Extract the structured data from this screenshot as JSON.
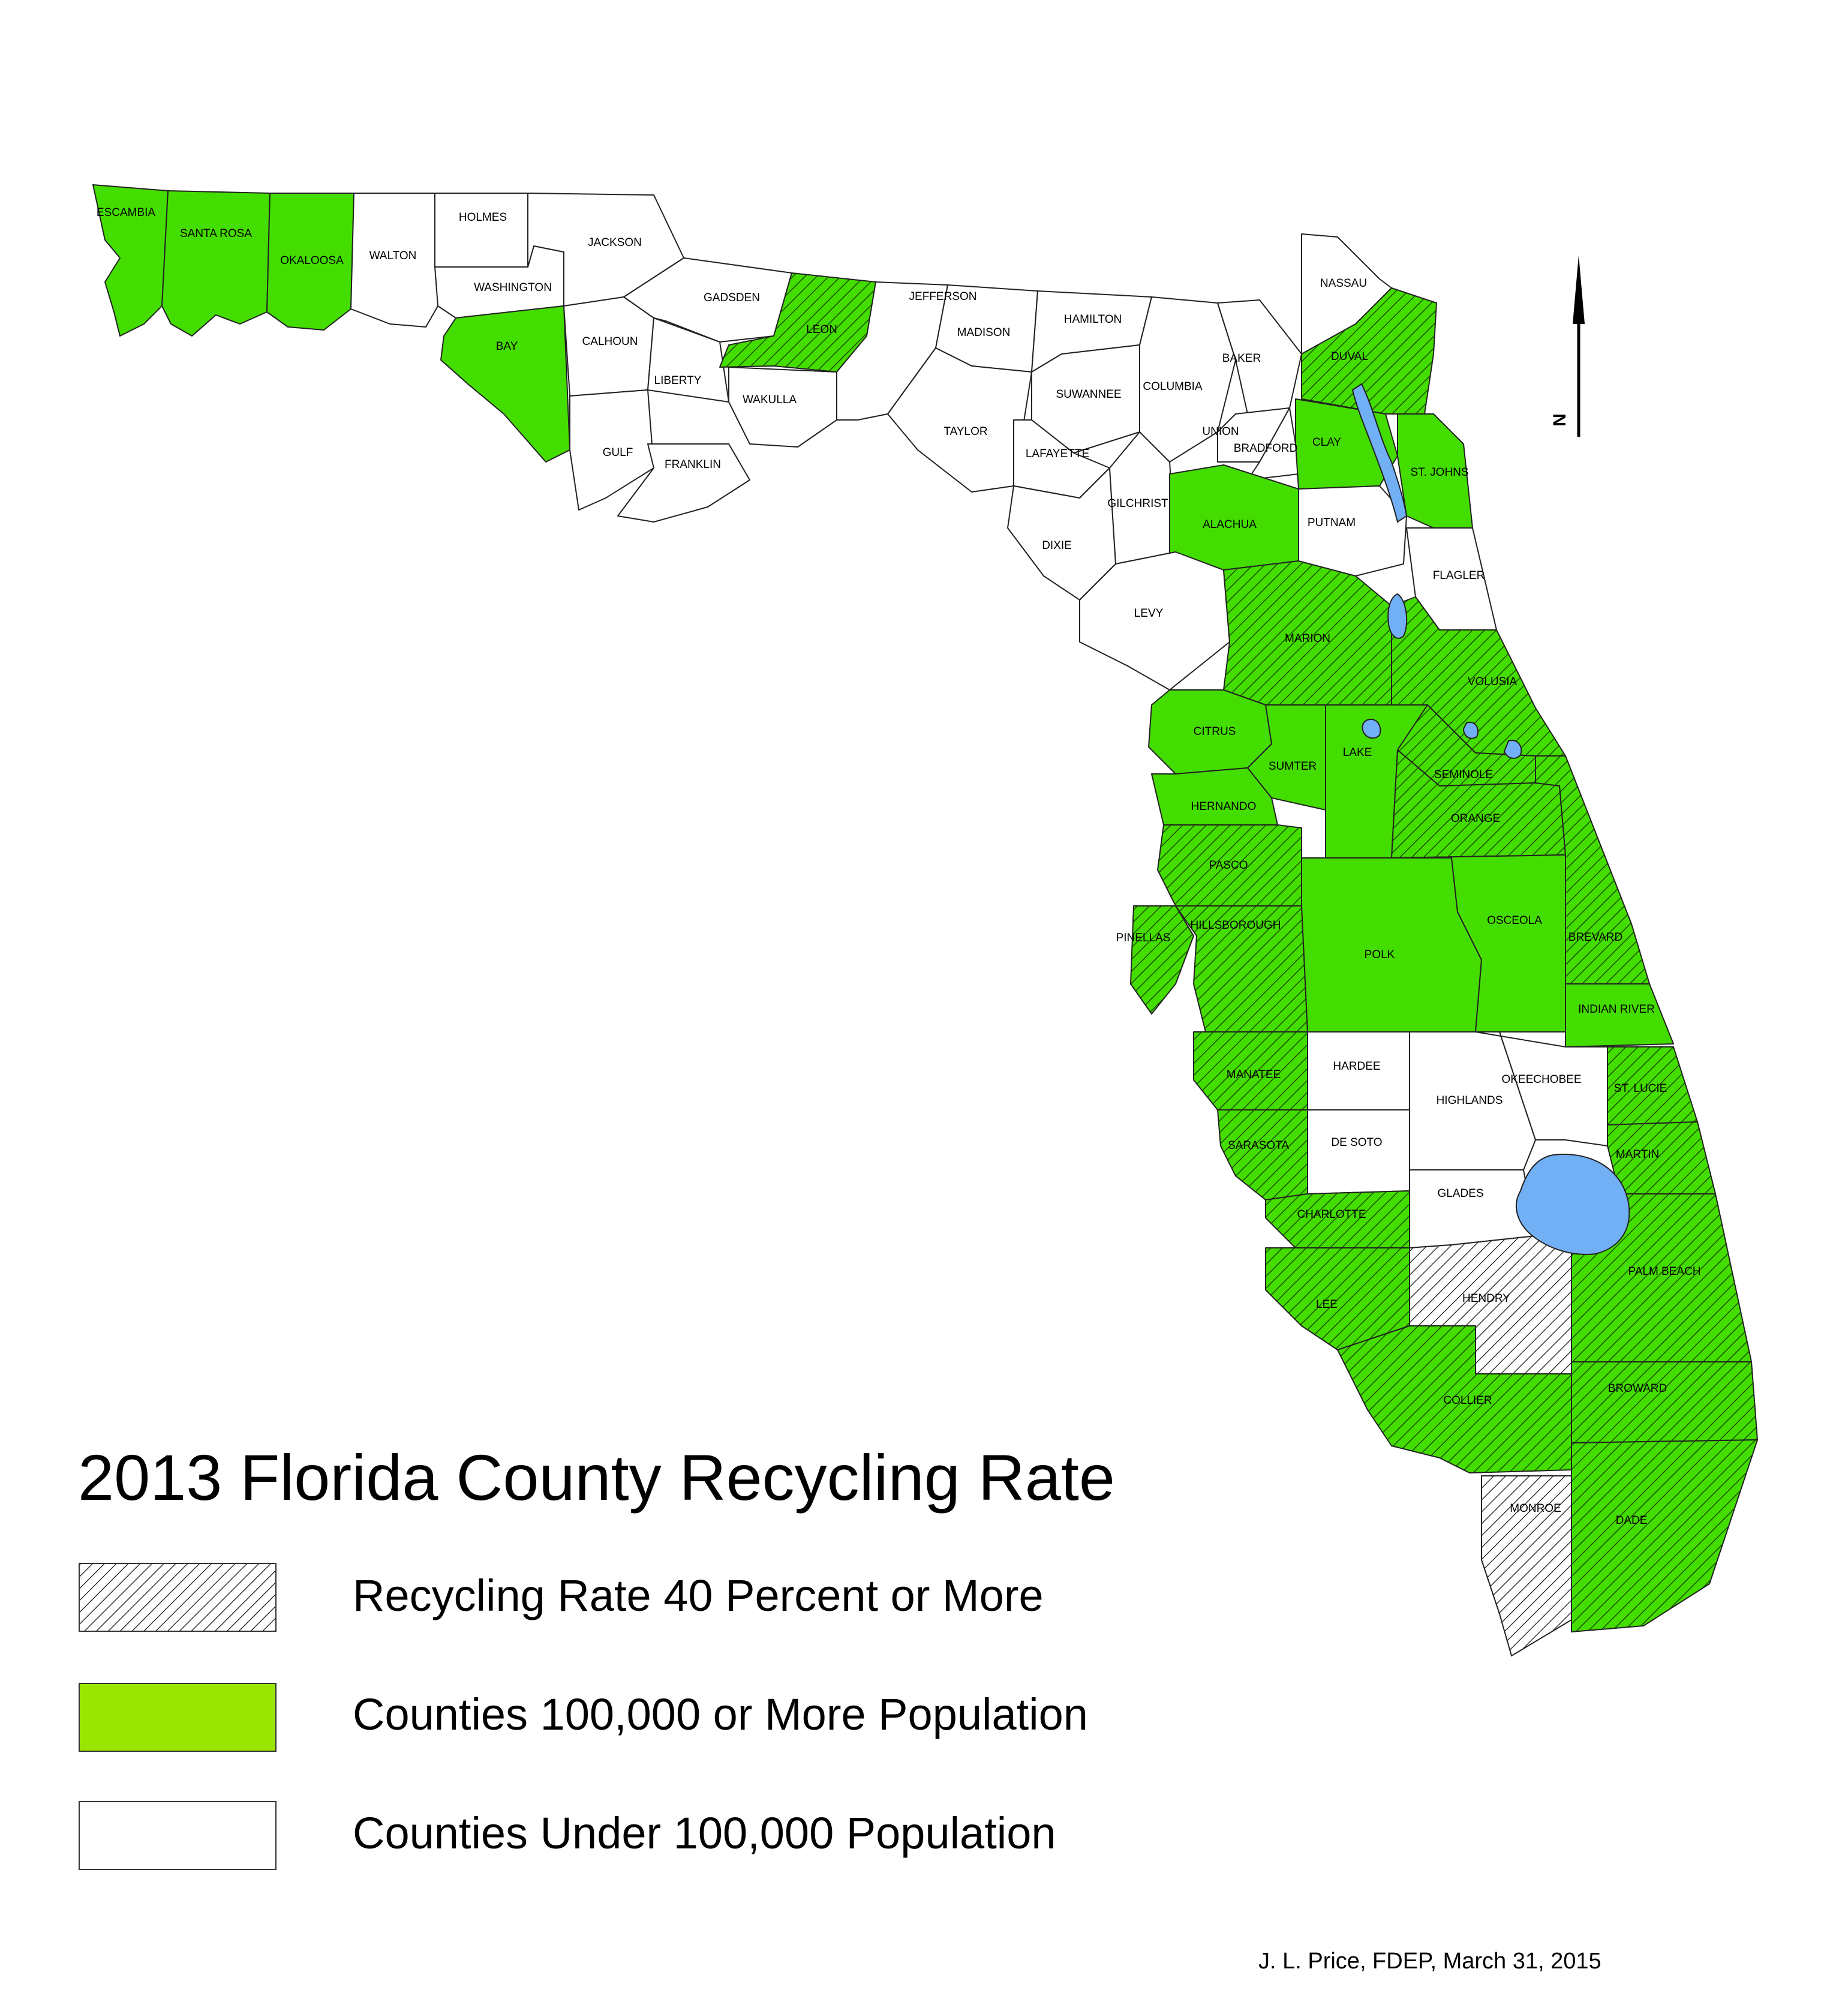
{
  "map": {
    "colors": {
      "green": "#44dd00",
      "legend_green": "#9ae600",
      "water": "#72b0f6",
      "outline": "#222222"
    },
    "counties": [
      {
        "name": "ESCAMBIA",
        "category": "green"
      },
      {
        "name": "SANTA ROSA",
        "category": "green"
      },
      {
        "name": "OKALOOSA",
        "category": "green"
      },
      {
        "name": "WALTON",
        "category": "white"
      },
      {
        "name": "HOLMES",
        "category": "white"
      },
      {
        "name": "WASHINGTON",
        "category": "white"
      },
      {
        "name": "JACKSON",
        "category": "white"
      },
      {
        "name": "BAY",
        "category": "green"
      },
      {
        "name": "CALHOUN",
        "category": "white"
      },
      {
        "name": "GADSDEN",
        "category": "white"
      },
      {
        "name": "LIBERTY",
        "category": "white"
      },
      {
        "name": "GULF",
        "category": "white"
      },
      {
        "name": "FRANKLIN",
        "category": "white"
      },
      {
        "name": "LEON",
        "category": "green-hatch"
      },
      {
        "name": "WAKULLA",
        "category": "white"
      },
      {
        "name": "JEFFERSON",
        "category": "white"
      },
      {
        "name": "MADISON",
        "category": "white"
      },
      {
        "name": "TAYLOR",
        "category": "white"
      },
      {
        "name": "HAMILTON",
        "category": "white"
      },
      {
        "name": "SUWANNEE",
        "category": "white"
      },
      {
        "name": "LAFAYETTE",
        "category": "white"
      },
      {
        "name": "COLUMBIA",
        "category": "white"
      },
      {
        "name": "DIXIE",
        "category": "white"
      },
      {
        "name": "GILCHRIST",
        "category": "white"
      },
      {
        "name": "BAKER",
        "category": "white"
      },
      {
        "name": "UNION",
        "category": "white"
      },
      {
        "name": "BRADFORD",
        "category": "white"
      },
      {
        "name": "NASSAU",
        "category": "white"
      },
      {
        "name": "DUVAL",
        "category": "green-hatch"
      },
      {
        "name": "CLAY",
        "category": "green"
      },
      {
        "name": "ST. JOHNS",
        "category": "green"
      },
      {
        "name": "ALACHUA",
        "category": "green"
      },
      {
        "name": "PUTNAM",
        "category": "white"
      },
      {
        "name": "FLAGLER",
        "category": "white"
      },
      {
        "name": "LEVY",
        "category": "white"
      },
      {
        "name": "MARION",
        "category": "green-hatch"
      },
      {
        "name": "VOLUSIA",
        "category": "green-hatch"
      },
      {
        "name": "CITRUS",
        "category": "green"
      },
      {
        "name": "SUMTER",
        "category": "green"
      },
      {
        "name": "LAKE",
        "category": "green"
      },
      {
        "name": "SEMINOLE",
        "category": "green-hatch"
      },
      {
        "name": "HERNANDO",
        "category": "green"
      },
      {
        "name": "ORANGE",
        "category": "green-hatch"
      },
      {
        "name": "PASCO",
        "category": "green-hatch"
      },
      {
        "name": "HILLSBOROUGH",
        "category": "green-hatch"
      },
      {
        "name": "PINELLAS",
        "category": "green-hatch"
      },
      {
        "name": "POLK",
        "category": "green"
      },
      {
        "name": "OSCEOLA",
        "category": "green"
      },
      {
        "name": "BREVARD",
        "category": "green-hatch"
      },
      {
        "name": "INDIAN RIVER",
        "category": "green"
      },
      {
        "name": "HARDEE",
        "category": "white"
      },
      {
        "name": "MANATEE",
        "category": "green-hatch"
      },
      {
        "name": "HIGHLANDS",
        "category": "white"
      },
      {
        "name": "OKEECHOBEE",
        "category": "white"
      },
      {
        "name": "ST. LUCIE",
        "category": "green-hatch"
      },
      {
        "name": "DE SOTO",
        "category": "white"
      },
      {
        "name": "SARASOTA",
        "category": "green-hatch"
      },
      {
        "name": "MARTIN",
        "category": "green-hatch"
      },
      {
        "name": "GLADES",
        "category": "white"
      },
      {
        "name": "CHARLOTTE",
        "category": "green-hatch"
      },
      {
        "name": "PALM BEACH",
        "category": "green-hatch"
      },
      {
        "name": "HENDRY",
        "category": "white-hatch"
      },
      {
        "name": "LEE",
        "category": "green-hatch"
      },
      {
        "name": "COLLIER",
        "category": "green-hatch"
      },
      {
        "name": "BROWARD",
        "category": "green-hatch"
      },
      {
        "name": "MONROE",
        "category": "white-hatch"
      },
      {
        "name": "DADE",
        "category": "green-hatch"
      }
    ],
    "north_label": "N"
  },
  "title": "2013 Florida County Recycling Rate",
  "legend": [
    {
      "label": "Recycling Rate 40 Percent or More",
      "swatch": "white-hatch"
    },
    {
      "label": "Counties 100,000 or More Population",
      "swatch": "green"
    },
    {
      "label": "Counties Under 100,000 Population",
      "swatch": "white"
    }
  ],
  "credit": "J. L. Price, FDEP, March 31, 2015"
}
